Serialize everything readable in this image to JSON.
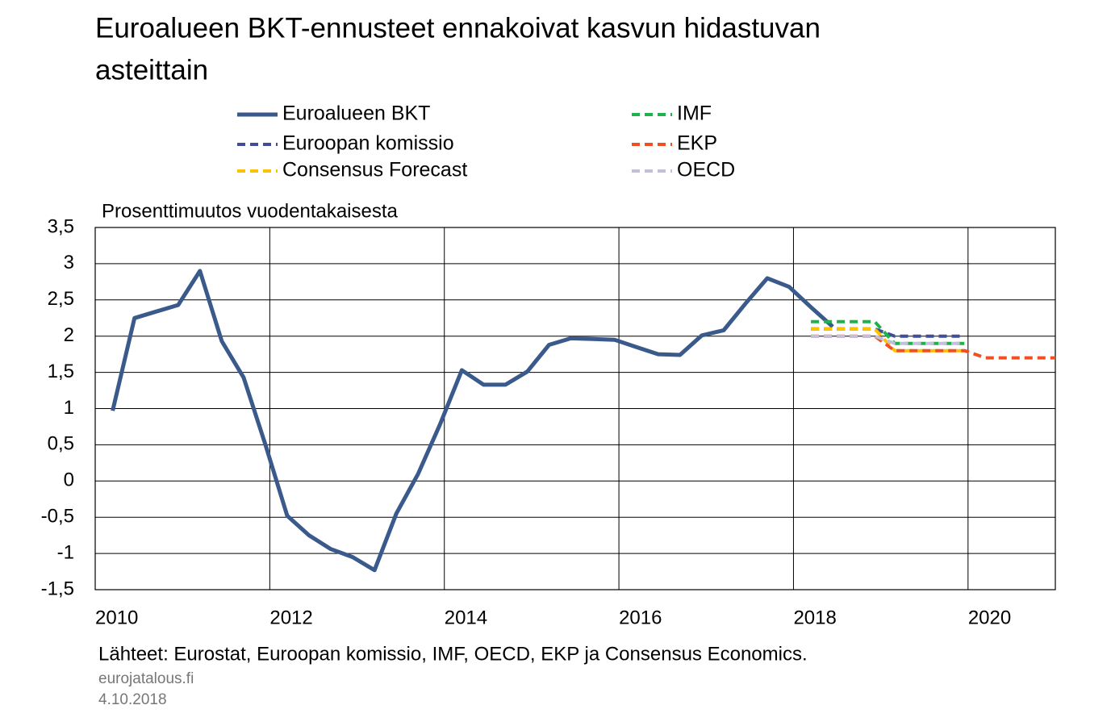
{
  "chart_data": {
    "type": "line",
    "title": [
      "Euroalueen BKT-ennusteet ennakoivat kasvun hidastuvan",
      "asteittain"
    ],
    "y_label": "Prosenttimuutos vuodentakaisesta",
    "source": "Lähteet: Eurostat, Euroopan komissio, IMF, OECD, EKP ja Consensus Economics.",
    "site": "eurojatalous.fi",
    "date": "4.10.2018",
    "xlim": [
      2010,
      2021
    ],
    "xticks": [
      2010,
      2012,
      2014,
      2016,
      2018,
      2020
    ],
    "ylim": [
      -1.5,
      3.5
    ],
    "yticks": [
      {
        "value": -1.5,
        "label": "-1,5"
      },
      -1,
      {
        "value": -0.5,
        "label": "-0,5"
      },
      0,
      {
        "value": 0.5,
        "label": "0,5"
      },
      1,
      {
        "value": 1.5,
        "label": "1,5"
      },
      2,
      {
        "value": 2.5,
        "label": "2,5"
      },
      3,
      {
        "value": 3.5,
        "label": "3,5"
      }
    ],
    "grid": true,
    "series": [
      {
        "name": "Euroalueen BKT",
        "color": "#3a5a8c",
        "dashed": false,
        "x": [
          2010.2,
          2010.45,
          2010.7,
          2010.95,
          2011.2,
          2011.45,
          2011.7,
          2011.95,
          2012.2,
          2012.45,
          2012.7,
          2012.95,
          2013.2,
          2013.45,
          2013.7,
          2013.95,
          2014.2,
          2014.45,
          2014.7,
          2014.95,
          2015.2,
          2015.45,
          2015.7,
          2015.95,
          2016.2,
          2016.45,
          2016.7,
          2016.95,
          2017.2,
          2017.45,
          2017.7,
          2017.95,
          2018.2,
          2018.45
        ],
        "values": [
          0.97,
          2.25,
          2.34,
          2.43,
          2.9,
          1.93,
          1.43,
          0.5,
          -0.48,
          -0.75,
          -0.94,
          -1.05,
          -1.23,
          -0.45,
          0.1,
          0.78,
          1.53,
          1.33,
          1.33,
          1.51,
          1.88,
          1.97,
          1.96,
          1.95,
          1.85,
          1.75,
          1.74,
          2.01,
          2.08,
          2.45,
          2.8,
          2.68,
          2.4,
          2.13
        ]
      },
      {
        "name": "Euroopan komissio",
        "color": "#3f4d9a",
        "dashed": true,
        "x": [
          2018.2,
          2018.93,
          2019.16,
          2019.96
        ],
        "values": [
          2.1,
          2.1,
          2.0,
          2.0
        ]
      },
      {
        "name": "Consensus Forecast",
        "color": "#ffc000",
        "dashed": true,
        "x": [
          2018.2,
          2018.93,
          2019.16,
          2019.96
        ],
        "values": [
          2.1,
          2.1,
          1.8,
          1.8
        ]
      },
      {
        "name": "IMF",
        "color": "#1fb24a",
        "dashed": true,
        "x": [
          2018.2,
          2018.93,
          2019.16,
          2019.96
        ],
        "values": [
          2.2,
          2.2,
          1.9,
          1.9
        ]
      },
      {
        "name": "EKP",
        "color": "#f04e23",
        "dashed": true,
        "x": [
          2018.2,
          2018.93,
          2019.16,
          2019.96,
          2020.2,
          2021
        ],
        "values": [
          2.0,
          2.0,
          1.8,
          1.8,
          1.7,
          1.7
        ]
      },
      {
        "name": "OECD",
        "color": "#c0c0dc",
        "dashed": true,
        "x": [
          2018.2,
          2018.93,
          2019.16,
          2019.96
        ],
        "values": [
          2.0,
          2.0,
          1.9,
          1.9
        ]
      }
    ]
  }
}
